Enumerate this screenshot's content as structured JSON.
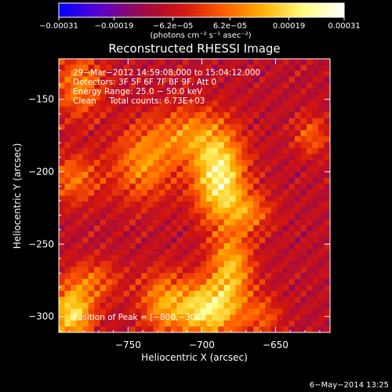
{
  "chart_data": {
    "type": "heatmap",
    "title": "Reconstructed RHESSI Image",
    "xlabel": "Heliocentric X (arcsec)",
    "ylabel": "Heliocentric Y (arcsec)",
    "xlim": [
      -797,
      -613
    ],
    "ylim": [
      -311,
      -122
    ],
    "x_ticks": [
      -750,
      -700,
      -650
    ],
    "x_tick_labels": [
      "−750",
      "−700",
      "−650"
    ],
    "y_ticks": [
      -150,
      -200,
      -250,
      -300
    ],
    "y_tick_labels": [
      "−150",
      "−200",
      "−250",
      "−300"
    ],
    "colorbar": {
      "range": [
        -0.00031,
        0.00031
      ],
      "tick_labels": [
        "−0.00031",
        "−0.00019",
        "−6.2e−05",
        "6.2e−05",
        "0.00019",
        "0.00031"
      ],
      "units_label": "(photons cm⁻² s⁻¹ asec⁻²)",
      "colortable": [
        "#0000ff",
        "#5a00d0",
        "#9a0a4a",
        "#d01410",
        "#ff5a00",
        "#ffb000",
        "#ffff80",
        "#ffffff"
      ]
    },
    "annotations": [
      "29−Mar−2012 14:59:08.000 to 15:04:12.000",
      "Detectors: 3F 5F 6F 7F 8F 9F, Att 0",
      "Energy Range: 25.0 − 50.0 keV",
      "Clean     Total counts: 6.73E+03"
    ],
    "peak_label": "Position of Peak = [−800,−306]",
    "peak_position": [
      -800,
      -306
    ],
    "grid": {
      "rows": 46,
      "cols": 46,
      "background_level": -8e-05,
      "sources": [
        {
          "x": -740,
          "y": -195,
          "sx": 14,
          "sy": 18,
          "amp": 0.00017
        },
        {
          "x": -783,
          "y": -140,
          "sx": 12,
          "sy": 16,
          "amp": 0.00016
        },
        {
          "x": -787,
          "y": -205,
          "sx": 13,
          "sy": 12,
          "amp": 0.00014
        },
        {
          "x": -788,
          "y": -298,
          "sx": 10,
          "sy": 14,
          "amp": 0.00027
        },
        {
          "x": -772,
          "y": -275,
          "sx": 12,
          "sy": 10,
          "amp": 0.00012
        },
        {
          "x": -708,
          "y": -175,
          "sx": 18,
          "sy": 14,
          "amp": 0.00016
        },
        {
          "x": -688,
          "y": -205,
          "sx": 12,
          "sy": 20,
          "amp": 0.00031
        },
        {
          "x": -668,
          "y": -228,
          "sx": 11,
          "sy": 10,
          "amp": 0.00014
        },
        {
          "x": -680,
          "y": -265,
          "sx": 10,
          "sy": 16,
          "amp": 0.00021
        },
        {
          "x": -696,
          "y": -295,
          "sx": 16,
          "sy": 14,
          "amp": 0.00029
        },
        {
          "x": -727,
          "y": -290,
          "sx": 11,
          "sy": 15,
          "amp": 0.00016
        },
        {
          "x": -658,
          "y": -300,
          "sx": 9,
          "sy": 10,
          "amp": 0.0001
        },
        {
          "x": -626,
          "y": -175,
          "sx": 8,
          "sy": 10,
          "amp": 0.00012
        }
      ]
    }
  },
  "footer": {
    "timestamp": "6−May−2014 13:25"
  }
}
